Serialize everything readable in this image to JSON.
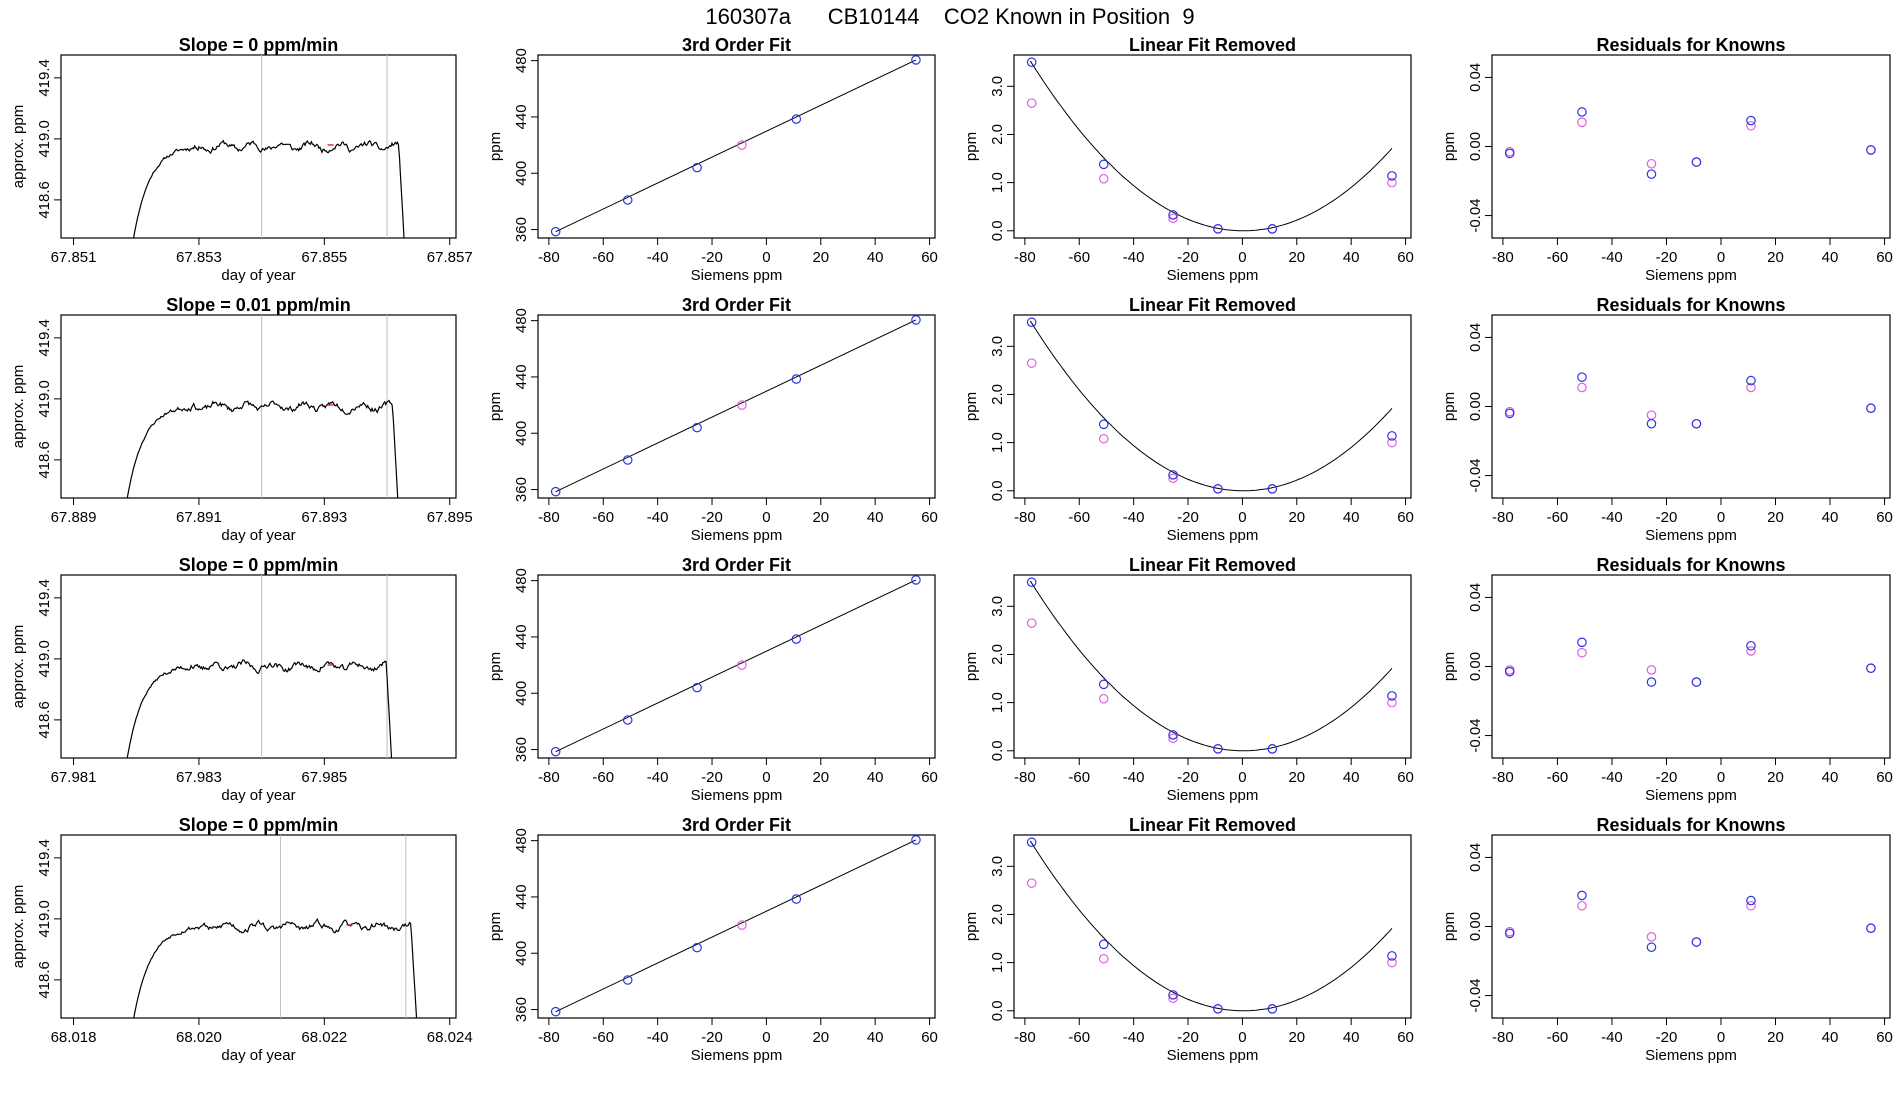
{
  "title": "160307a      CB10144    CO2 Known in Position  9",
  "colors": {
    "blue": "#2b35e8",
    "magenta": "#e060e0",
    "trace": "#000000",
    "vline": "#bdbdbd",
    "red": "#e02020"
  },
  "chart_data": [
    {
      "type": "line",
      "row": 1,
      "col": 1,
      "title": "Slope =  0  ppm/min",
      "xlabel": "day of year",
      "ylabel": "approx. ppm",
      "xlim": [
        67.8508,
        67.8571
      ],
      "ylim": [
        418.35,
        419.55
      ],
      "xticks": [
        67.851,
        67.853,
        67.855,
        67.857
      ],
      "xtick_labels": [
        "67.851",
        "67.853",
        "67.855",
        "67.857"
      ],
      "yticks": [
        418.6,
        419.0,
        419.4
      ],
      "ytick_labels": [
        "418.6",
        "419.0",
        "419.4"
      ],
      "trace": {
        "x_start": 67.8519,
        "x_end": 67.8563,
        "seed": 11
      },
      "vlines": [
        67.854,
        67.856
      ]
    },
    {
      "type": "line",
      "row": 2,
      "col": 1,
      "title": "Slope =  0.01  ppm/min",
      "xlabel": "day of year",
      "ylabel": "approx. ppm",
      "xlim": [
        67.8888,
        67.8951
      ],
      "ylim": [
        418.35,
        419.55
      ],
      "xticks": [
        67.889,
        67.891,
        67.893,
        67.895
      ],
      "xtick_labels": [
        "67.889",
        "67.891",
        "67.893",
        "67.895"
      ],
      "yticks": [
        418.6,
        419.0,
        419.4
      ],
      "ytick_labels": [
        "418.6",
        "419.0",
        "419.4"
      ],
      "trace": {
        "x_start": 67.8898,
        "x_end": 67.8942,
        "seed": 23
      },
      "vlines": [
        67.892,
        67.894
      ]
    },
    {
      "type": "line",
      "row": 3,
      "col": 1,
      "title": "Slope =  0  ppm/min",
      "xlabel": "day of year",
      "ylabel": "approx. ppm",
      "xlim": [
        67.9808,
        67.9871
      ],
      "ylim": [
        418.35,
        419.55
      ],
      "xticks": [
        67.981,
        67.983,
        67.985
      ],
      "xtick_labels": [
        "67.981",
        "67.983",
        "67.985"
      ],
      "yticks": [
        418.6,
        419.0,
        419.4
      ],
      "ytick_labels": [
        "418.6",
        "419.0",
        "419.4"
      ],
      "trace": {
        "x_start": 67.9818,
        "x_end": 67.9861,
        "seed": 37
      },
      "vlines": [
        67.984,
        67.986
      ]
    },
    {
      "type": "line",
      "row": 4,
      "col": 1,
      "title": "Slope =  0  ppm/min",
      "xlabel": "day of year",
      "ylabel": "approx. ppm",
      "xlim": [
        68.0178,
        68.0241
      ],
      "ylim": [
        418.35,
        419.55
      ],
      "xticks": [
        68.018,
        68.02,
        68.022,
        68.024
      ],
      "xtick_labels": [
        "68.018",
        "68.020",
        "68.022",
        "68.024"
      ],
      "yticks": [
        418.6,
        419.0,
        419.4
      ],
      "ytick_labels": [
        "418.6",
        "419.0",
        "419.4"
      ],
      "trace": {
        "x_start": 68.0189,
        "x_end": 68.0235,
        "seed": 53
      },
      "vlines": [
        68.0213,
        68.0233
      ]
    },
    {
      "type": "scatter",
      "col": 2,
      "title": "3rd Order Fit",
      "xlabel": "Siemens ppm",
      "ylabel": "ppm",
      "xlim": [
        -84,
        62
      ],
      "ylim": [
        354,
        484
      ],
      "xticks": [
        -80,
        -60,
        -40,
        -20,
        0,
        20,
        40,
        60
      ],
      "xtick_labels": [
        "-80",
        "-60",
        "-40",
        "-20",
        "0",
        "20",
        "40",
        "60"
      ],
      "yticks": [
        360,
        400,
        440,
        480
      ],
      "ytick_labels": [
        "360",
        "400",
        "440",
        "480"
      ],
      "fit_line": {
        "x": [
          -77.5,
          55
        ],
        "y": [
          358.5,
          480.5
        ]
      },
      "points": [
        {
          "x": -77.5,
          "y": 358.5,
          "c": "blue"
        },
        {
          "x": -51,
          "y": 381,
          "c": "blue"
        },
        {
          "x": -25.5,
          "y": 404,
          "c": "blue"
        },
        {
          "x": -9,
          "y": 420,
          "c": "magenta"
        },
        {
          "x": 11,
          "y": 438.5,
          "c": "blue"
        },
        {
          "x": 55,
          "y": 480.5,
          "c": "blue"
        }
      ]
    },
    {
      "type": "scatter",
      "col": 3,
      "title": "Linear Fit Removed",
      "xlabel": "Siemens ppm",
      "ylabel": "ppm",
      "xlim": [
        -84,
        62
      ],
      "ylim": [
        -0.15,
        3.65
      ],
      "xticks": [
        -80,
        -60,
        -40,
        -20,
        0,
        20,
        40,
        60
      ],
      "xtick_labels": [
        "-80",
        "-60",
        "-40",
        "-20",
        "0",
        "20",
        "40",
        "60"
      ],
      "yticks": [
        0,
        1,
        2,
        3
      ],
      "ytick_labels": [
        "0.0",
        "1.0",
        "2.0",
        "3.0"
      ],
      "curve": {
        "type": "quadratic",
        "a": 0.000574,
        "b": -0.00045,
        "c": 0.0,
        "x_range": [
          -78,
          55
        ]
      },
      "points": [
        {
          "x": -77.5,
          "y": 3.5,
          "c": "blue"
        },
        {
          "x": -77.5,
          "y": 2.65,
          "c": "magenta"
        },
        {
          "x": -51,
          "y": 1.38,
          "c": "blue"
        },
        {
          "x": -51,
          "y": 1.08,
          "c": "magenta"
        },
        {
          "x": -25.5,
          "y": 0.33,
          "c": "blue"
        },
        {
          "x": -25.5,
          "y": 0.26,
          "c": "magenta"
        },
        {
          "x": -9,
          "y": 0.04,
          "c": "blue"
        },
        {
          "x": -9,
          "y": 0.04,
          "c": "magenta"
        },
        {
          "x": 11,
          "y": 0.04,
          "c": "blue"
        },
        {
          "x": 11,
          "y": 0.04,
          "c": "magenta"
        },
        {
          "x": 55,
          "y": 1.14,
          "c": "blue"
        },
        {
          "x": 55,
          "y": 1.0,
          "c": "magenta"
        }
      ]
    },
    {
      "type": "scatter",
      "col": 4,
      "title": "Residuals for Knowns",
      "xlabel": "Siemens ppm",
      "ylabel": "ppm",
      "xlim": [
        -84,
        62
      ],
      "ylim": [
        -0.053,
        0.053
      ],
      "xticks": [
        -80,
        -60,
        -40,
        -20,
        0,
        20,
        40,
        60
      ],
      "xtick_labels": [
        "-80",
        "-60",
        "-40",
        "-20",
        "0",
        "20",
        "40",
        "60"
      ],
      "yticks": [
        -0.04,
        0,
        0.04
      ],
      "ytick_labels": [
        "-0.04",
        "0.00",
        "0.04"
      ],
      "rows": [
        [
          {
            "x": -77.5,
            "y": -0.004,
            "c": "blue"
          },
          {
            "x": -77.5,
            "y": -0.003,
            "c": "magenta"
          },
          {
            "x": -51,
            "y": 0.02,
            "c": "blue"
          },
          {
            "x": -51,
            "y": 0.014,
            "c": "magenta"
          },
          {
            "x": -25.5,
            "y": -0.016,
            "c": "blue"
          },
          {
            "x": -25.5,
            "y": -0.01,
            "c": "magenta"
          },
          {
            "x": -9,
            "y": -0.009,
            "c": "blue"
          },
          {
            "x": -9,
            "y": -0.009,
            "c": "magenta"
          },
          {
            "x": 11,
            "y": 0.015,
            "c": "blue"
          },
          {
            "x": 11,
            "y": 0.012,
            "c": "magenta"
          },
          {
            "x": 55,
            "y": -0.002,
            "c": "blue"
          },
          {
            "x": 55,
            "y": -0.002,
            "c": "magenta"
          }
        ],
        [
          {
            "x": -77.5,
            "y": -0.004,
            "c": "blue"
          },
          {
            "x": -77.5,
            "y": -0.003,
            "c": "magenta"
          },
          {
            "x": -51,
            "y": 0.017,
            "c": "blue"
          },
          {
            "x": -51,
            "y": 0.011,
            "c": "magenta"
          },
          {
            "x": -25.5,
            "y": -0.01,
            "c": "blue"
          },
          {
            "x": -25.5,
            "y": -0.005,
            "c": "magenta"
          },
          {
            "x": -9,
            "y": -0.01,
            "c": "blue"
          },
          {
            "x": -9,
            "y": -0.01,
            "c": "magenta"
          },
          {
            "x": 11,
            "y": 0.015,
            "c": "blue"
          },
          {
            "x": 11,
            "y": 0.011,
            "c": "magenta"
          },
          {
            "x": 55,
            "y": -0.001,
            "c": "blue"
          },
          {
            "x": 55,
            "y": -0.001,
            "c": "magenta"
          }
        ],
        [
          {
            "x": -77.5,
            "y": -0.003,
            "c": "blue"
          },
          {
            "x": -77.5,
            "y": -0.002,
            "c": "magenta"
          },
          {
            "x": -51,
            "y": 0.014,
            "c": "blue"
          },
          {
            "x": -51,
            "y": 0.008,
            "c": "magenta"
          },
          {
            "x": -25.5,
            "y": -0.009,
            "c": "blue"
          },
          {
            "x": -25.5,
            "y": -0.002,
            "c": "magenta"
          },
          {
            "x": -9,
            "y": -0.009,
            "c": "blue"
          },
          {
            "x": -9,
            "y": -0.009,
            "c": "magenta"
          },
          {
            "x": 11,
            "y": 0.012,
            "c": "blue"
          },
          {
            "x": 11,
            "y": 0.009,
            "c": "magenta"
          },
          {
            "x": 55,
            "y": -0.001,
            "c": "blue"
          },
          {
            "x": 55,
            "y": -0.001,
            "c": "magenta"
          }
        ],
        [
          {
            "x": -77.5,
            "y": -0.004,
            "c": "blue"
          },
          {
            "x": -77.5,
            "y": -0.003,
            "c": "magenta"
          },
          {
            "x": -51,
            "y": 0.018,
            "c": "blue"
          },
          {
            "x": -51,
            "y": 0.012,
            "c": "magenta"
          },
          {
            "x": -25.5,
            "y": -0.012,
            "c": "blue"
          },
          {
            "x": -25.5,
            "y": -0.006,
            "c": "magenta"
          },
          {
            "x": -9,
            "y": -0.009,
            "c": "blue"
          },
          {
            "x": -9,
            "y": -0.009,
            "c": "magenta"
          },
          {
            "x": 11,
            "y": 0.015,
            "c": "blue"
          },
          {
            "x": 11,
            "y": 0.012,
            "c": "magenta"
          },
          {
            "x": 55,
            "y": -0.001,
            "c": "blue"
          },
          {
            "x": 55,
            "y": -0.001,
            "c": "magenta"
          }
        ]
      ]
    }
  ]
}
